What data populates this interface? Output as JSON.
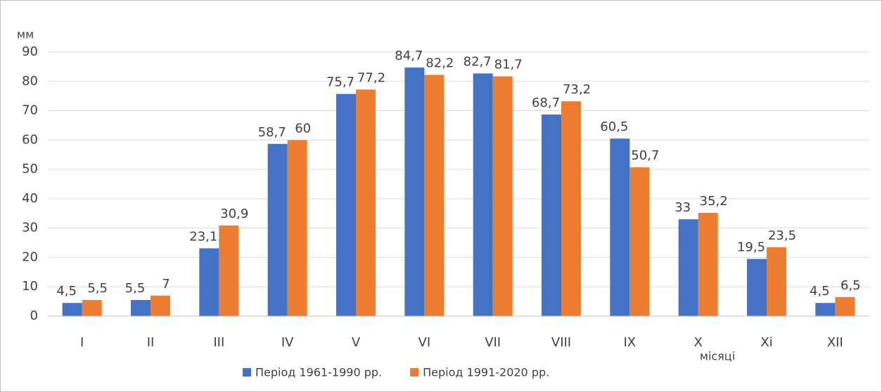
{
  "chart_data": {
    "type": "bar",
    "y_label": "мм",
    "x_label": "місяці",
    "categories": [
      "I",
      "II",
      "III",
      "IV",
      "V",
      "VI",
      "VII",
      "VIII",
      "IX",
      "X",
      "Xi",
      "XII"
    ],
    "series": [
      {
        "name": "Період 1961-1990 рр.",
        "color": "#4472c4",
        "values": [
          4.5,
          5.5,
          23.1,
          58.7,
          75.7,
          84.7,
          82.7,
          68.7,
          60.5,
          33,
          19.5,
          4.5
        ],
        "value_labels": [
          "4,5",
          "5,5",
          "23,1",
          "58,7",
          "75,7",
          "84,7",
          "82,7",
          "68,7",
          "60,5",
          "33",
          "19,5",
          "4,5"
        ]
      },
      {
        "name": "Період 1991-2020 рр.",
        "color": "#ed7d31",
        "values": [
          5.5,
          7,
          30.9,
          60,
          77.2,
          82.2,
          81.7,
          73.2,
          50.7,
          35.2,
          23.5,
          6.5
        ],
        "value_labels": [
          "5,5",
          "7",
          "30,9",
          "60",
          "77,2",
          "82,2",
          "81,7",
          "73,2",
          "50,7",
          "35,2",
          "23,5",
          "6,5"
        ]
      }
    ],
    "ylim": [
      0,
      90
    ],
    "yticks": [
      0,
      10,
      20,
      30,
      40,
      50,
      60,
      70,
      80,
      90
    ],
    "grid": true
  }
}
